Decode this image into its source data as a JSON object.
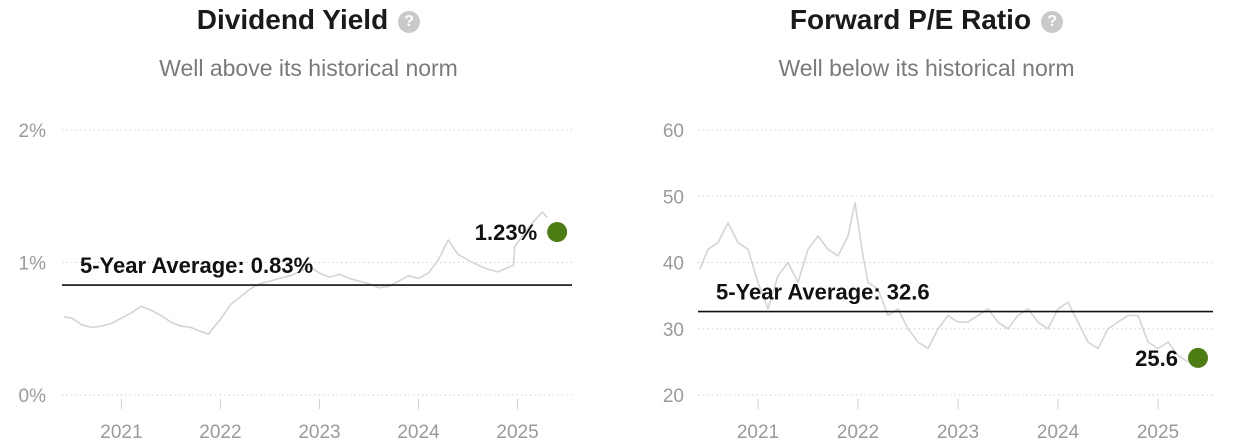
{
  "colors": {
    "line": "#d4d4d4",
    "grid": "#d0d0d0",
    "average": "#111111",
    "current_dot": "#4b7d12",
    "help_icon": "#c9c9c9"
  },
  "help_icon": "question-mark-icon",
  "chart_data": [
    {
      "type": "line",
      "title": "Dividend Yield",
      "subtitle": "Well above its historical norm",
      "y_tick_labels": [
        "2%",
        "1%",
        "0%"
      ],
      "y_ticks": [
        2,
        1,
        0
      ],
      "ylim": [
        0,
        2
      ],
      "x_tick_labels": [
        "2021",
        "2022",
        "2023",
        "2024",
        "2025"
      ],
      "xlim": [
        2020.4,
        2025.55
      ],
      "grid": true,
      "average": {
        "label": "5-Year Average: 0.83%",
        "value": 0.83
      },
      "current": {
        "label": "1.23%",
        "value": 1.23,
        "x": 2025.4
      },
      "series": [
        {
          "x": [
            2020.42,
            2020.5,
            2020.6,
            2020.7,
            2020.8,
            2020.9,
            2021.0,
            2021.1,
            2021.2,
            2021.3,
            2021.4,
            2021.5,
            2021.6,
            2021.7,
            2021.8,
            2021.88,
            2021.92,
            2022.0,
            2022.1,
            2022.2,
            2022.3,
            2022.4,
            2022.5,
            2022.6,
            2022.7,
            2022.8,
            2022.9,
            2023.0,
            2023.1,
            2023.2,
            2023.3,
            2023.4,
            2023.5,
            2023.6,
            2023.7,
            2023.8,
            2023.9,
            2024.0,
            2024.1,
            2024.2,
            2024.3,
            2024.4,
            2024.5,
            2024.6,
            2024.7,
            2024.8,
            2024.9,
            2024.96,
            2024.97,
            2025.05,
            2025.15,
            2025.25,
            2025.3
          ],
          "values": [
            0.59,
            0.58,
            0.53,
            0.51,
            0.52,
            0.54,
            0.58,
            0.62,
            0.67,
            0.64,
            0.6,
            0.55,
            0.52,
            0.51,
            0.48,
            0.46,
            0.5,
            0.57,
            0.68,
            0.74,
            0.8,
            0.84,
            0.86,
            0.88,
            0.9,
            0.93,
            0.97,
            0.92,
            0.89,
            0.91,
            0.88,
            0.86,
            0.84,
            0.81,
            0.82,
            0.86,
            0.9,
            0.88,
            0.92,
            1.02,
            1.17,
            1.06,
            1.02,
            0.98,
            0.95,
            0.93,
            0.96,
            0.98,
            1.12,
            1.2,
            1.3,
            1.38,
            1.34
          ]
        }
      ]
    },
    {
      "type": "line",
      "title": "Forward P/E Ratio",
      "subtitle": "Well below its historical norm",
      "y_tick_labels": [
        "60",
        "50",
        "40",
        "30",
        "20"
      ],
      "y_ticks": [
        60,
        50,
        40,
        30,
        20
      ],
      "ylim": [
        20,
        60
      ],
      "x_tick_labels": [
        "2021",
        "2022",
        "2023",
        "2024",
        "2025"
      ],
      "xlim": [
        2020.4,
        2025.55
      ],
      "grid": true,
      "average": {
        "label": "5-Year Average: 32.6",
        "value": 32.6
      },
      "current": {
        "label": "25.6",
        "value": 25.6,
        "x": 2025.4
      },
      "series": [
        {
          "x": [
            2020.42,
            2020.5,
            2020.6,
            2020.7,
            2020.8,
            2020.9,
            2021.0,
            2021.1,
            2021.2,
            2021.3,
            2021.4,
            2021.5,
            2021.6,
            2021.7,
            2021.8,
            2021.9,
            2021.97,
            2022.05,
            2022.1,
            2022.2,
            2022.3,
            2022.4,
            2022.5,
            2022.6,
            2022.7,
            2022.8,
            2022.9,
            2023.0,
            2023.1,
            2023.2,
            2023.3,
            2023.4,
            2023.5,
            2023.6,
            2023.7,
            2023.8,
            2023.9,
            2024.0,
            2024.1,
            2024.2,
            2024.3,
            2024.4,
            2024.5,
            2024.6,
            2024.7,
            2024.8,
            2024.9,
            2025.0,
            2025.1,
            2025.2,
            2025.3
          ],
          "values": [
            39,
            42,
            43,
            46,
            43,
            42,
            37,
            33,
            38,
            40,
            37,
            42,
            44,
            42,
            41,
            44,
            49,
            41,
            37,
            36,
            32,
            33,
            30,
            28,
            27,
            30,
            32,
            31,
            31,
            32,
            33,
            31,
            30,
            32,
            33,
            31,
            30,
            33,
            34,
            31,
            28,
            27,
            30,
            31,
            32,
            32,
            28,
            27,
            28,
            26,
            25
          ]
        }
      ]
    }
  ]
}
